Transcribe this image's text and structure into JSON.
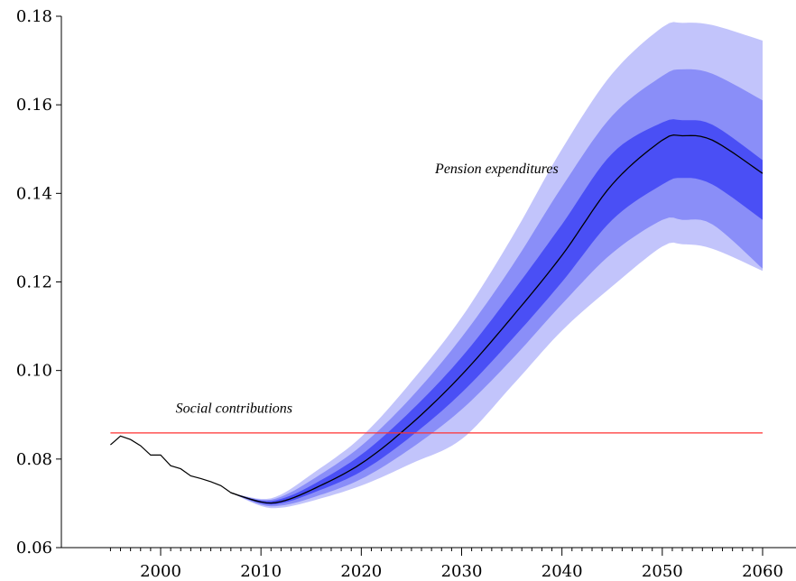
{
  "chart_data": {
    "type": "area",
    "title": "",
    "xlabel": "",
    "ylabel": "",
    "xlim": [
      1995,
      2060
    ],
    "ylim": [
      0.06,
      0.18
    ],
    "x_ticks": [
      2000,
      2010,
      2020,
      2030,
      2040,
      2050,
      2060
    ],
    "y_ticks": [
      0.06,
      0.08,
      0.1,
      0.12,
      0.14,
      0.16,
      0.18
    ],
    "x_tick_labels": [
      "2000",
      "2010",
      "2020",
      "2030",
      "2040",
      "2050",
      "2060"
    ],
    "y_tick_labels": [
      "0.06",
      "0.08",
      "0.10",
      "0.12",
      "0.14",
      "0.16",
      "0.18"
    ],
    "grid": false,
    "annotations": [
      {
        "text": "Pension expenditures",
        "x": 2033.5,
        "y": 0.1445
      },
      {
        "text": "Social contributions",
        "x": 2001.5,
        "y": 0.0905
      }
    ],
    "historical": {
      "x": [
        1995,
        1996,
        1997,
        1998,
        1999,
        2000,
        2001,
        2002,
        2003,
        2004,
        2005,
        2006,
        2007,
        2008,
        2009,
        2010
      ],
      "y": [
        0.0832,
        0.0852,
        0.0844,
        0.083,
        0.0809,
        0.0809,
        0.0785,
        0.0778,
        0.0762,
        0.0756,
        0.0749,
        0.074,
        0.0724,
        0.0716,
        0.0709,
        0.0703
      ]
    },
    "social_contributions": {
      "x": [
        1995,
        2060
      ],
      "y": [
        0.0859,
        0.0859
      ],
      "color": "#ff3030"
    },
    "forecast": {
      "x": [
        2007,
        2010,
        2012,
        2015,
        2020,
        2025,
        2030,
        2035,
        2040,
        2045,
        2050,
        2052,
        2055,
        2060
      ],
      "median": [
        0.0724,
        0.0703,
        0.0704,
        0.073,
        0.079,
        0.088,
        0.099,
        0.112,
        0.126,
        0.142,
        0.152,
        0.153,
        0.152,
        0.1445
      ],
      "band_inner_lower": [
        0.0724,
        0.07,
        0.07,
        0.0722,
        0.0772,
        0.0852,
        0.095,
        0.107,
        0.12,
        0.134,
        0.142,
        0.1435,
        0.142,
        0.134
      ],
      "band_inner_upper": [
        0.0724,
        0.0706,
        0.071,
        0.074,
        0.081,
        0.091,
        0.103,
        0.1175,
        0.133,
        0.149,
        0.156,
        0.1565,
        0.1555,
        0.1475
      ],
      "band_mid_lower": [
        0.0724,
        0.0697,
        0.0695,
        0.0712,
        0.0755,
        0.0825,
        0.0912,
        0.1025,
        0.115,
        0.1265,
        0.134,
        0.134,
        0.133,
        0.123
      ],
      "band_mid_upper": [
        0.0724,
        0.0708,
        0.0715,
        0.0752,
        0.083,
        0.094,
        0.1075,
        0.1235,
        0.1415,
        0.1575,
        0.1665,
        0.168,
        0.167,
        0.161
      ],
      "band_outer_lower": [
        0.0724,
        0.0694,
        0.069,
        0.0705,
        0.074,
        0.079,
        0.0845,
        0.0965,
        0.109,
        0.119,
        0.128,
        0.1285,
        0.1275,
        0.1225
      ],
      "band_outer_upper": [
        0.0724,
        0.071,
        0.072,
        0.0765,
        0.085,
        0.0975,
        0.112,
        0.13,
        0.15,
        0.167,
        0.1775,
        0.1785,
        0.178,
        0.1745
      ]
    },
    "colors": {
      "band_outer": "#c2c4fb",
      "band_mid": "#8a8ef8",
      "band_inner": "#4a4ff5",
      "median": "#000000",
      "historical": "#000000",
      "social_contributions": "#ff3030"
    }
  }
}
